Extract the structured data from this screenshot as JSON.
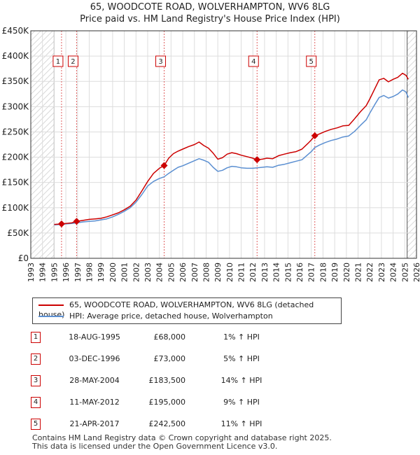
{
  "chart_data": {
    "type": "line",
    "title": "65, WOODCOTE ROAD, WOLVERHAMPTON, WV6 8LG",
    "subtitle": "Price paid vs. HM Land Registry's House Price Index (HPI)",
    "xlim": [
      1993,
      2026
    ],
    "ylim": [
      0,
      450000
    ],
    "x_ticks": [
      "1993",
      "1994",
      "1995",
      "1996",
      "1997",
      "1998",
      "1999",
      "2000",
      "2001",
      "2002",
      "2003",
      "2004",
      "2005",
      "2006",
      "2007",
      "2008",
      "2009",
      "2010",
      "2011",
      "2012",
      "2013",
      "2014",
      "2015",
      "2016",
      "2017",
      "2018",
      "2019",
      "2020",
      "2021",
      "2022",
      "2023",
      "2024",
      "2025",
      "2026"
    ],
    "y_ticks": [
      {
        "value": 0,
        "label": "£0"
      },
      {
        "value": 50000,
        "label": "£50K"
      },
      {
        "value": 100000,
        "label": "£100K"
      },
      {
        "value": 150000,
        "label": "£150K"
      },
      {
        "value": 200000,
        "label": "£200K"
      },
      {
        "value": 250000,
        "label": "£250K"
      },
      {
        "value": 300000,
        "label": "£300K"
      },
      {
        "value": 350000,
        "label": "£350K"
      },
      {
        "value": 400000,
        "label": "£400K"
      },
      {
        "value": 450000,
        "label": "£450K"
      }
    ],
    "hatched_ranges": [
      [
        1993,
        1995.0
      ],
      [
        2025.2,
        2026
      ]
    ],
    "grid": true,
    "series": [
      {
        "name": "65, WOODCOTE ROAD, WOLVERHAMPTON, WV6 8LG (detached house)",
        "color": "#cc0000",
        "points": [
          [
            1995.0,
            67000
          ],
          [
            1995.63,
            68000
          ],
          [
            1996.0,
            69000
          ],
          [
            1996.5,
            70000
          ],
          [
            1996.92,
            73000
          ],
          [
            1997.5,
            75000
          ],
          [
            1998.0,
            77000
          ],
          [
            1998.5,
            78000
          ],
          [
            1999.0,
            79000
          ],
          [
            1999.5,
            82000
          ],
          [
            2000.0,
            86000
          ],
          [
            2000.5,
            90000
          ],
          [
            2001.0,
            96000
          ],
          [
            2001.5,
            103000
          ],
          [
            2002.0,
            115000
          ],
          [
            2002.5,
            133000
          ],
          [
            2003.0,
            152000
          ],
          [
            2003.5,
            168000
          ],
          [
            2004.0,
            178000
          ],
          [
            2004.41,
            183500
          ],
          [
            2004.8,
            198000
          ],
          [
            2005.2,
            207000
          ],
          [
            2005.6,
            212000
          ],
          [
            2006.0,
            216000
          ],
          [
            2006.5,
            221000
          ],
          [
            2007.0,
            225000
          ],
          [
            2007.4,
            230000
          ],
          [
            2007.8,
            223000
          ],
          [
            2008.2,
            218000
          ],
          [
            2008.6,
            208000
          ],
          [
            2009.0,
            196000
          ],
          [
            2009.4,
            199000
          ],
          [
            2009.8,
            206000
          ],
          [
            2010.2,
            209000
          ],
          [
            2010.6,
            207000
          ],
          [
            2011.0,
            204000
          ],
          [
            2011.5,
            201000
          ],
          [
            2012.0,
            198000
          ],
          [
            2012.36,
            195000
          ],
          [
            2012.8,
            196000
          ],
          [
            2013.2,
            198000
          ],
          [
            2013.7,
            197000
          ],
          [
            2014.2,
            203000
          ],
          [
            2014.7,
            206000
          ],
          [
            2015.2,
            209000
          ],
          [
            2015.7,
            211000
          ],
          [
            2016.2,
            216000
          ],
          [
            2016.7,
            227000
          ],
          [
            2017.0,
            234000
          ],
          [
            2017.3,
            242500
          ],
          [
            2017.7,
            246000
          ],
          [
            2018.2,
            251000
          ],
          [
            2018.7,
            255000
          ],
          [
            2019.2,
            258000
          ],
          [
            2019.7,
            262000
          ],
          [
            2020.2,
            263000
          ],
          [
            2020.7,
            276000
          ],
          [
            2021.2,
            290000
          ],
          [
            2021.7,
            302000
          ],
          [
            2022.0,
            315000
          ],
          [
            2022.4,
            334000
          ],
          [
            2022.8,
            353000
          ],
          [
            2023.2,
            356000
          ],
          [
            2023.6,
            349000
          ],
          [
            2024.0,
            354000
          ],
          [
            2024.4,
            358000
          ],
          [
            2024.8,
            366000
          ],
          [
            2025.1,
            362000
          ],
          [
            2025.3,
            354000
          ]
        ]
      },
      {
        "name": "HPI: Average price, detached house, Wolverhampton",
        "color": "#5b8fd1",
        "points": [
          [
            1995.0,
            66000
          ],
          [
            1995.6,
            67000
          ],
          [
            1996.0,
            68000
          ],
          [
            1996.5,
            69000
          ],
          [
            1996.92,
            70000
          ],
          [
            1997.5,
            72000
          ],
          [
            1998.0,
            73000
          ],
          [
            1998.5,
            74000
          ],
          [
            1999.0,
            76000
          ],
          [
            1999.5,
            78000
          ],
          [
            2000.0,
            82000
          ],
          [
            2000.5,
            87000
          ],
          [
            2001.0,
            93000
          ],
          [
            2001.5,
            100000
          ],
          [
            2002.0,
            111000
          ],
          [
            2002.5,
            126000
          ],
          [
            2003.0,
            143000
          ],
          [
            2003.5,
            152000
          ],
          [
            2004.0,
            158000
          ],
          [
            2004.4,
            161000
          ],
          [
            2004.8,
            168000
          ],
          [
            2005.2,
            174000
          ],
          [
            2005.6,
            180000
          ],
          [
            2006.0,
            183000
          ],
          [
            2006.5,
            188000
          ],
          [
            2007.0,
            193000
          ],
          [
            2007.4,
            197000
          ],
          [
            2007.8,
            194000
          ],
          [
            2008.2,
            190000
          ],
          [
            2008.6,
            180000
          ],
          [
            2009.0,
            172000
          ],
          [
            2009.4,
            174000
          ],
          [
            2009.8,
            179000
          ],
          [
            2010.2,
            182000
          ],
          [
            2010.6,
            181000
          ],
          [
            2011.0,
            179000
          ],
          [
            2011.5,
            178000
          ],
          [
            2012.0,
            178000
          ],
          [
            2012.36,
            179000
          ],
          [
            2012.8,
            180000
          ],
          [
            2013.2,
            181000
          ],
          [
            2013.7,
            180000
          ],
          [
            2014.2,
            184000
          ],
          [
            2014.7,
            186000
          ],
          [
            2015.2,
            189000
          ],
          [
            2015.7,
            192000
          ],
          [
            2016.2,
            195000
          ],
          [
            2016.7,
            205000
          ],
          [
            2017.0,
            211000
          ],
          [
            2017.3,
            219000
          ],
          [
            2017.7,
            224000
          ],
          [
            2018.2,
            229000
          ],
          [
            2018.7,
            233000
          ],
          [
            2019.2,
            236000
          ],
          [
            2019.7,
            240000
          ],
          [
            2020.2,
            242000
          ],
          [
            2020.7,
            251000
          ],
          [
            2021.2,
            263000
          ],
          [
            2021.7,
            274000
          ],
          [
            2022.0,
            287000
          ],
          [
            2022.4,
            303000
          ],
          [
            2022.8,
            318000
          ],
          [
            2023.2,
            322000
          ],
          [
            2023.6,
            317000
          ],
          [
            2024.0,
            320000
          ],
          [
            2024.4,
            325000
          ],
          [
            2024.8,
            333000
          ],
          [
            2025.1,
            329000
          ],
          [
            2025.3,
            318000
          ]
        ]
      }
    ],
    "sale_markers": [
      {
        "num": "1",
        "x": 1995.63,
        "y": 68000
      },
      {
        "num": "2",
        "x": 1996.92,
        "y": 73000
      },
      {
        "num": "3",
        "x": 2004.41,
        "y": 183500
      },
      {
        "num": "4",
        "x": 2012.36,
        "y": 195000
      },
      {
        "num": "5",
        "x": 2017.3,
        "y": 242500
      }
    ]
  },
  "legend": {
    "property_label": "65, WOODCOTE ROAD, WOLVERHAMPTON, WV6 8LG (detached house)",
    "hpi_label": "HPI: Average price, detached house, Wolverhampton"
  },
  "sales": [
    {
      "num": "1",
      "date": "18-AUG-1995",
      "price": "£68,000",
      "hpi": "1% ↑ HPI"
    },
    {
      "num": "2",
      "date": "03-DEC-1996",
      "price": "£73,000",
      "hpi": "5% ↑ HPI"
    },
    {
      "num": "3",
      "date": "28-MAY-2004",
      "price": "£183,500",
      "hpi": "14% ↑ HPI"
    },
    {
      "num": "4",
      "date": "11-MAY-2012",
      "price": "£195,000",
      "hpi": "9% ↑ HPI"
    },
    {
      "num": "5",
      "date": "21-APR-2017",
      "price": "£242,500",
      "hpi": "11% ↑ HPI"
    }
  ],
  "footer": {
    "line1": "Contains HM Land Registry data © Crown copyright and database right 2025.",
    "line2": "This data is licensed under the Open Government Licence v3.0."
  },
  "colors": {
    "property": "#cc0000",
    "hpi": "#5b8fd1",
    "grid": "#dddddd",
    "hatch": "#cccccc"
  }
}
